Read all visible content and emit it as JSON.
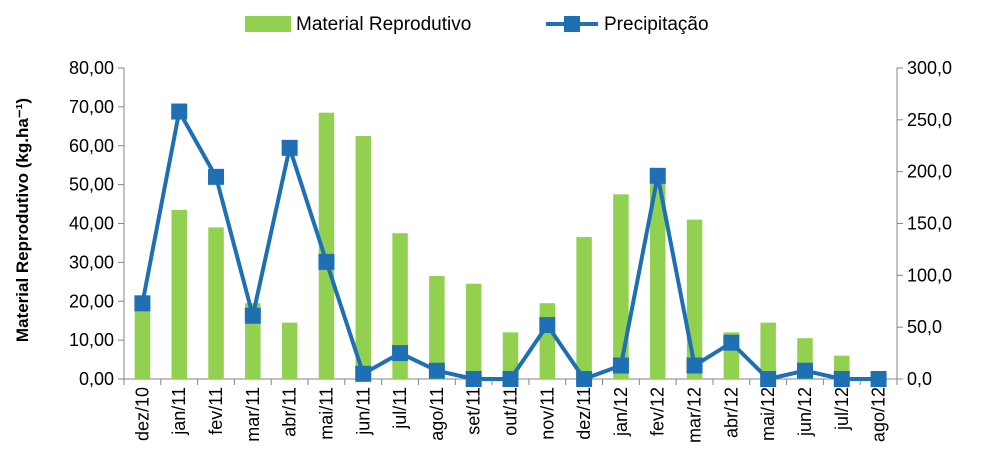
{
  "chart_data": {
    "type": "bar",
    "categories": [
      "dez/10",
      "jan/11",
      "fev/11",
      "mar/11",
      "abr/11",
      "mai/11",
      "jun/11",
      "jul/11",
      "ago/11",
      "set/11",
      "out/11",
      "nov/11",
      "dez/11",
      "jan/12",
      "fev/12",
      "mar/12",
      "abr/12",
      "mai/12",
      "jun/12",
      "jul/12",
      "ago/12"
    ],
    "series": [
      {
        "name": "Material Reprodutivo",
        "type": "bar",
        "axis": "left",
        "color": "#92D050",
        "values": [
          19.5,
          43.5,
          39.0,
          19.5,
          14.5,
          68.5,
          62.5,
          37.5,
          26.5,
          24.5,
          12.0,
          19.5,
          36.5,
          47.5,
          50.5,
          41.0,
          12.0,
          14.5,
          10.5,
          6.0,
          0.0
        ]
      },
      {
        "name": "Precipitação",
        "type": "line",
        "axis": "right",
        "color": "#1F6FB5",
        "values": [
          73,
          258,
          195,
          61,
          223,
          113,
          5,
          25,
          8,
          0,
          0,
          52,
          0,
          13,
          196,
          13,
          35,
          0,
          8,
          0,
          0
        ]
      }
    ],
    "ylabel": "Material Reprodutivo (kg.ha⁻¹)",
    "y_left": {
      "min": 0,
      "max": 80,
      "step": 10,
      "ticks": [
        "0,00",
        "10,00",
        "20,00",
        "30,00",
        "40,00",
        "50,00",
        "60,00",
        "70,00",
        "80,00"
      ]
    },
    "y_right": {
      "min": 0,
      "max": 300,
      "step": 50,
      "ticks": [
        "0,0",
        "50,0",
        "100,0",
        "150,0",
        "200,0",
        "250,0",
        "300,0"
      ]
    },
    "grid": false,
    "legend_position": "top-center"
  }
}
